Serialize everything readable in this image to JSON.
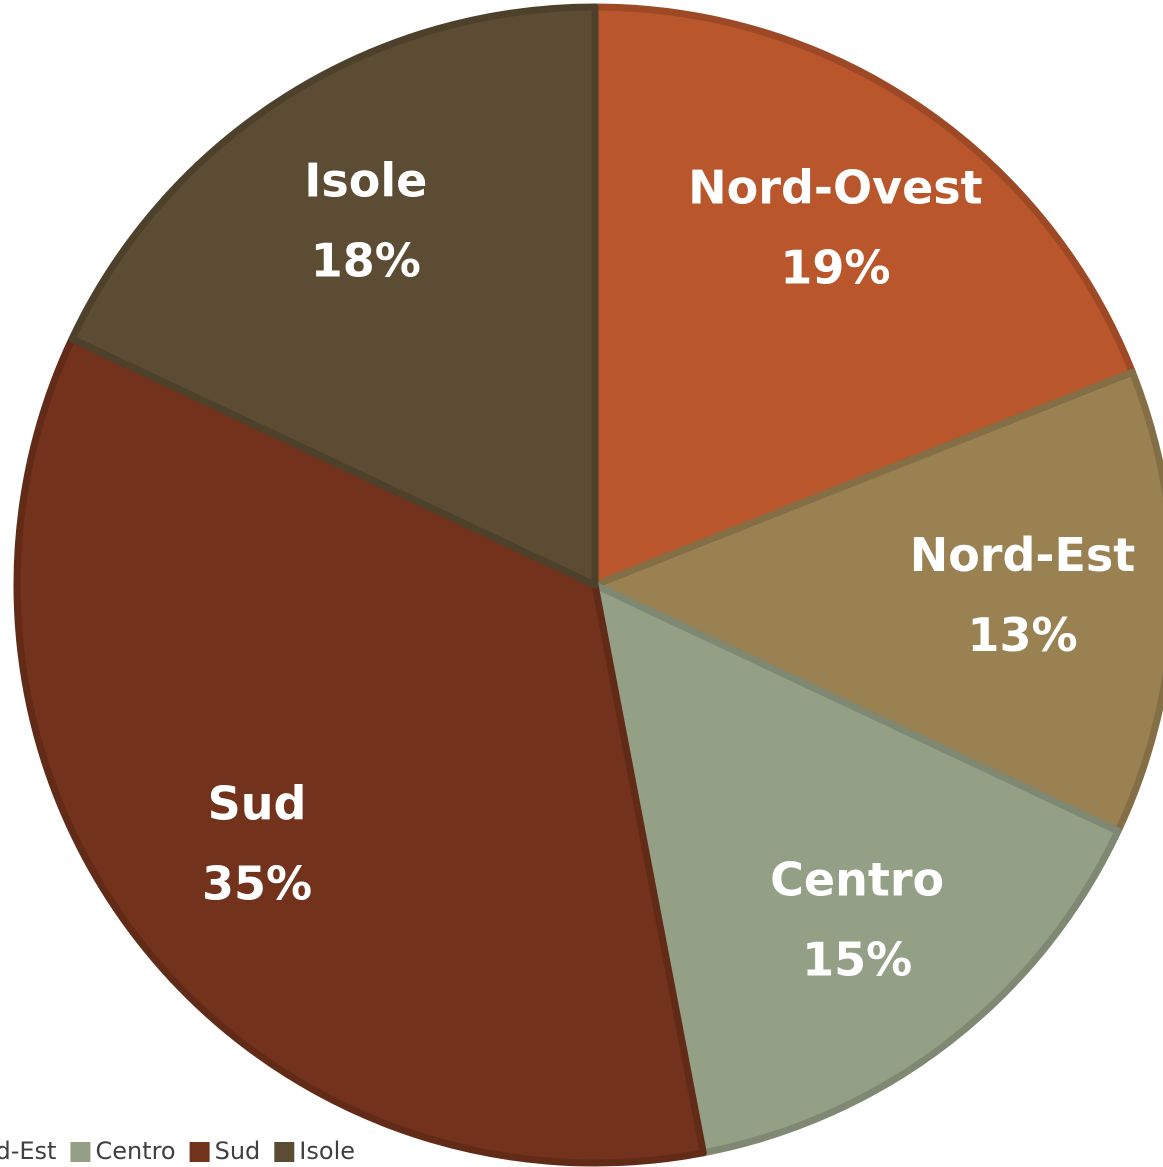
{
  "chart_data": {
    "type": "pie",
    "categories": [
      "Nord-Ovest",
      "Nord-Est",
      "Centro",
      "Sud",
      "Isole"
    ],
    "values": [
      19,
      13,
      15,
      35,
      18
    ],
    "value_labels": [
      "19%",
      "13%",
      "15%",
      "35%",
      "18%"
    ],
    "colors": [
      "#b9562b",
      "#9a8152",
      "#94a086",
      "#72321b",
      "#5c4c33"
    ],
    "legend": "bottom"
  }
}
